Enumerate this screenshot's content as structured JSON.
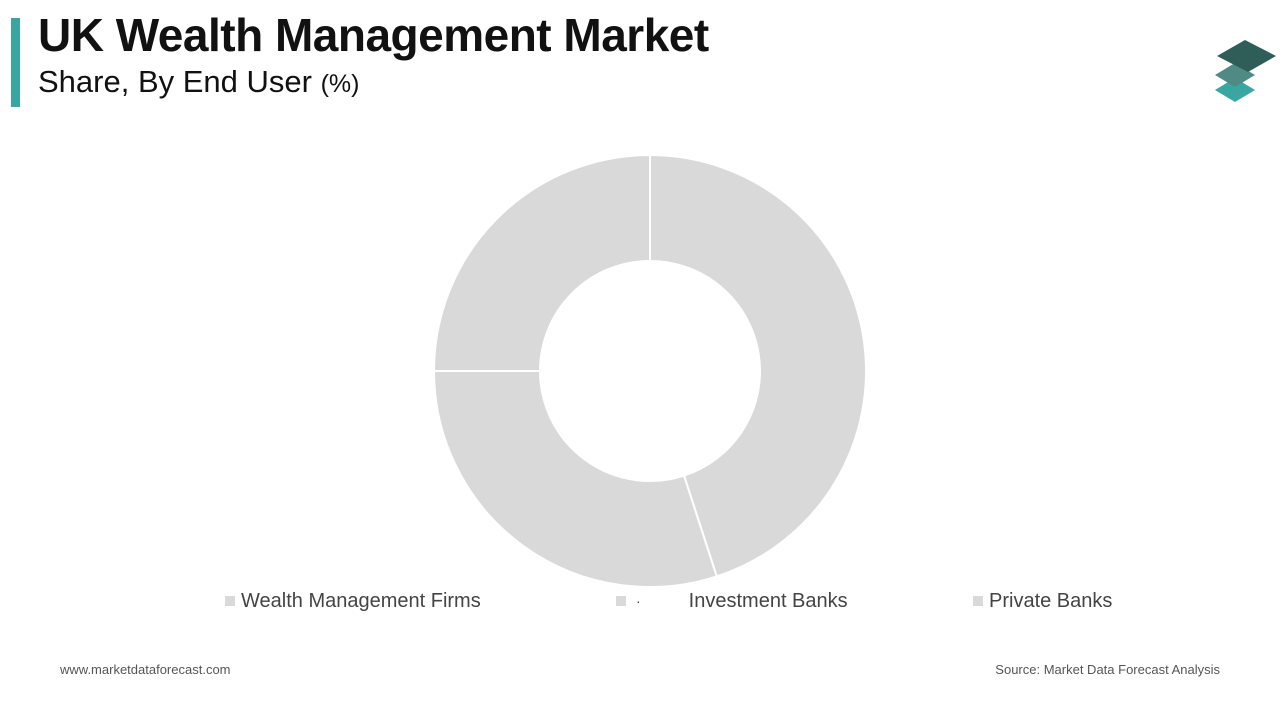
{
  "header": {
    "title": "UK Wealth Management Market",
    "subtitle": "Share, By End User",
    "unit": "(%)"
  },
  "logo": {
    "icon": "stacked-layers-icon",
    "colors": [
      "#2f5e59",
      "#4f8b84",
      "#3aa6a2"
    ]
  },
  "chart_data": {
    "type": "pie",
    "donut": true,
    "categories": [
      "Wealth Management Firms",
      "Investment Banks",
      "Private Banks"
    ],
    "values": [
      45,
      30,
      25
    ],
    "slice_color": "#d9d9d9",
    "separator_color": "#ffffff",
    "legend_position": "bottom"
  },
  "legend": {
    "items": [
      {
        "label": "Wealth Management Firms"
      },
      {
        "label": "Investment Banks",
        "marker": "·"
      },
      {
        "label": "Private Banks"
      }
    ]
  },
  "footer": {
    "website": "www.marketdataforecast.com",
    "source": "Source: Market Data Forecast Analysis"
  }
}
